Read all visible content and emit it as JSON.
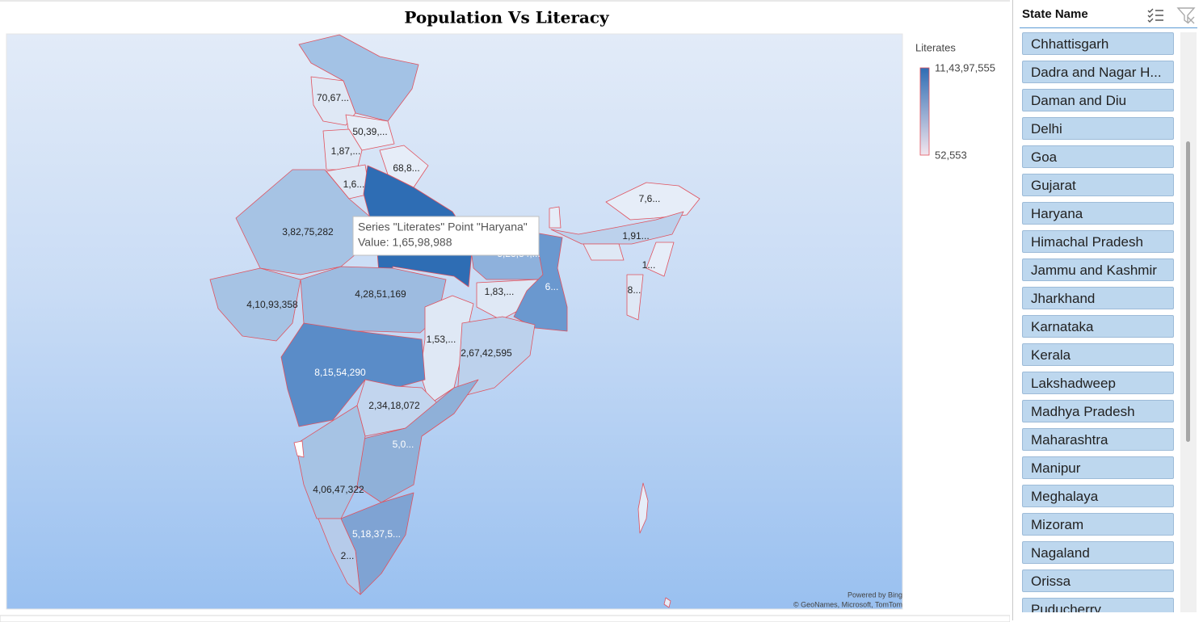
{
  "chart_data": {
    "type": "map",
    "title": "Population Vs Literacy",
    "legend": {
      "title": "Literates",
      "max": {
        "value": 114397555,
        "label": "11,43,97,555"
      },
      "min": {
        "value": 52553,
        "label": "52,553"
      }
    },
    "data_labels": [
      "70,67...",
      "50,39,...",
      "1,87,...",
      "1,6...",
      "68,8...",
      "3,82,75,282",
      "4,10,93,358",
      "4,28,51,169",
      "5,23,84,...",
      "1,83,...",
      "6...",
      "1,53,...",
      "2,67,42,595",
      "8,15,54,290",
      "2,34,18,072",
      "5,0...",
      "4,06,47,322",
      "5,18,37,5...",
      "2...",
      "7,6...",
      "1,91...",
      "1...",
      "8..."
    ],
    "tooltip": {
      "title": "Series \"Literates\" Point \"Haryana\"",
      "value": "Value: 1,65,98,988"
    },
    "attribution": [
      "Powered by Bing",
      "© GeoNames, Microsoft, TomTom"
    ]
  },
  "slicer": {
    "header": "State Name",
    "items": [
      "Chhattisgarh",
      "Dadra and Nagar H...",
      "Daman and Diu",
      "Delhi",
      "Goa",
      "Gujarat",
      "Haryana",
      "Himachal Pradesh",
      "Jammu and Kashmir",
      "Jharkhand",
      "Karnataka",
      "Kerala",
      "Lakshadweep",
      "Madhya Pradesh",
      "Maharashtra",
      "Manipur",
      "Meghalaya",
      "Mizoram",
      "Nagaland",
      "Orissa",
      "Puducherry"
    ]
  }
}
